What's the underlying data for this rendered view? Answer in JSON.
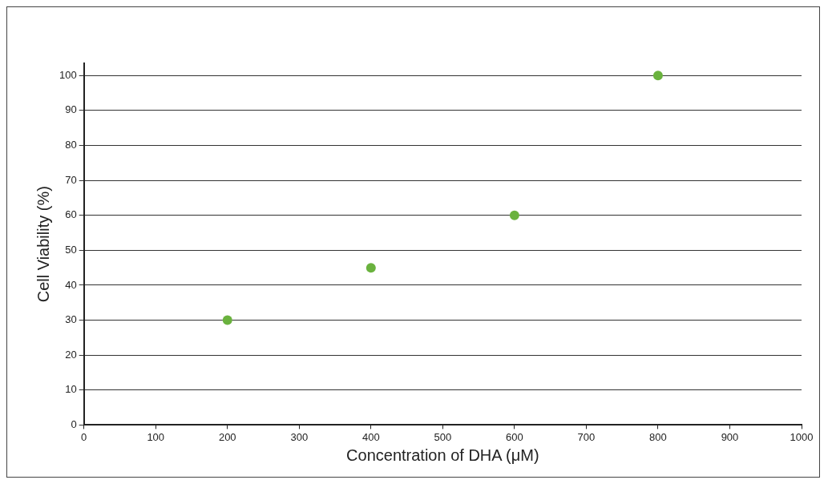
{
  "chart_data": {
    "type": "scatter",
    "xlabel": "Concentration of DHA (μM)",
    "ylabel": "Cell Viability (%)",
    "x": [
      200,
      400,
      600,
      800
    ],
    "series": [
      {
        "color": "#6ab23e",
        "values": [
          30,
          45,
          60,
          100
        ]
      }
    ],
    "xlim": [
      0,
      1000
    ],
    "xticks": [
      0,
      100,
      200,
      300,
      400,
      500,
      600,
      700,
      800,
      900,
      1000
    ],
    "ylim": [
      0,
      103.5
    ],
    "yticks": [
      0,
      10,
      20,
      30,
      40,
      50,
      60,
      70,
      80,
      90,
      100
    ],
    "grid": "y",
    "marker": "circle"
  }
}
